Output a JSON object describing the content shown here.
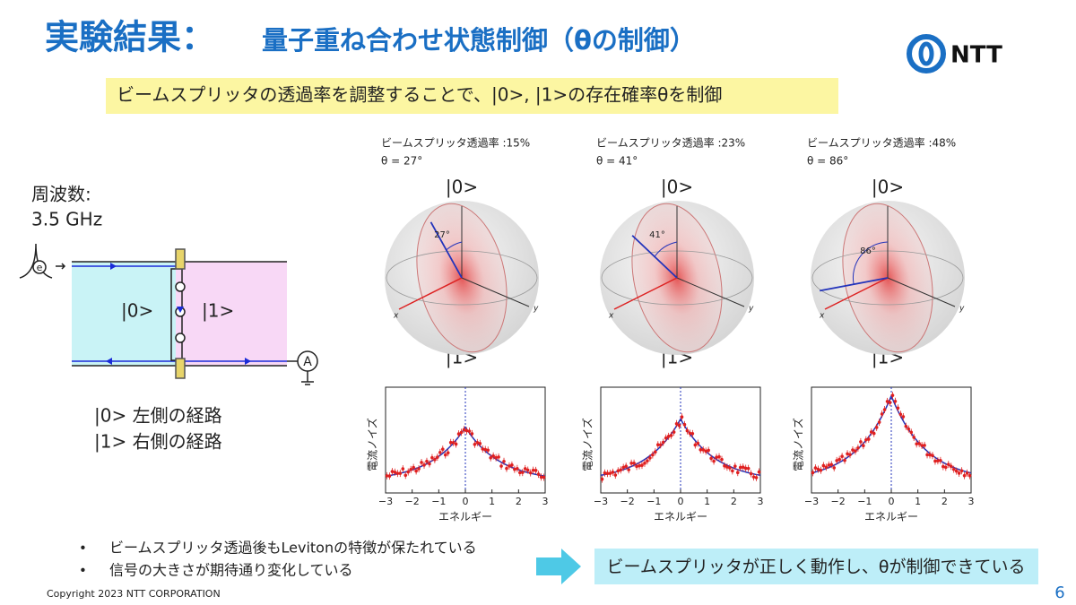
{
  "header": {
    "title": "実験結果：",
    "title_sub": "量子重ね合わせ状態制御（θの制御）",
    "logo": "NTT"
  },
  "subtitle": "ビームスプリッタの透過率を調整することで、|0>, |1>の存在確率θを制御",
  "frequency": {
    "label": "周波数:",
    "value": "3.5 GHz"
  },
  "diagram": {
    "left_label": "|0>",
    "right_label": "|1>",
    "source": "e",
    "meter": "A"
  },
  "legend": [
    "|0> 左側の経路",
    "|1> 右側の経路"
  ],
  "plot": {
    "y_label": "電流ノイズ",
    "x_label": "エネルギー",
    "xticks": [
      "−3",
      "−2",
      "−1",
      "0",
      "1",
      "2",
      "3"
    ],
    "axis_x": "x",
    "axis_y": "y"
  },
  "panels": [
    {
      "transmission": "ビームスプリッタ透過率 :15%",
      "theta": "θ = 27°",
      "angle": "27°",
      "top": "|0>",
      "bottom": "|1>"
    },
    {
      "transmission": "ビームスプリッタ透過率 :23%",
      "theta": "θ = 41°",
      "angle": "41°",
      "top": "|0>",
      "bottom": "|1>"
    },
    {
      "transmission": "ビームスプリッタ透過率 :48%",
      "theta": "θ = 86°",
      "angle": "86°",
      "top": "|0>",
      "bottom": "|1>"
    }
  ],
  "bullets": [
    "ビームスプリッタ透過後もLevitonの特徴が保たれている",
    "信号の大きさが期待通り変化している"
  ],
  "conclusion": "ビームスプリッタが正しく動作し、θが制御できている",
  "footer": {
    "copyright": "Copyright 2023 NTT CORPORATION",
    "page": "6"
  }
}
